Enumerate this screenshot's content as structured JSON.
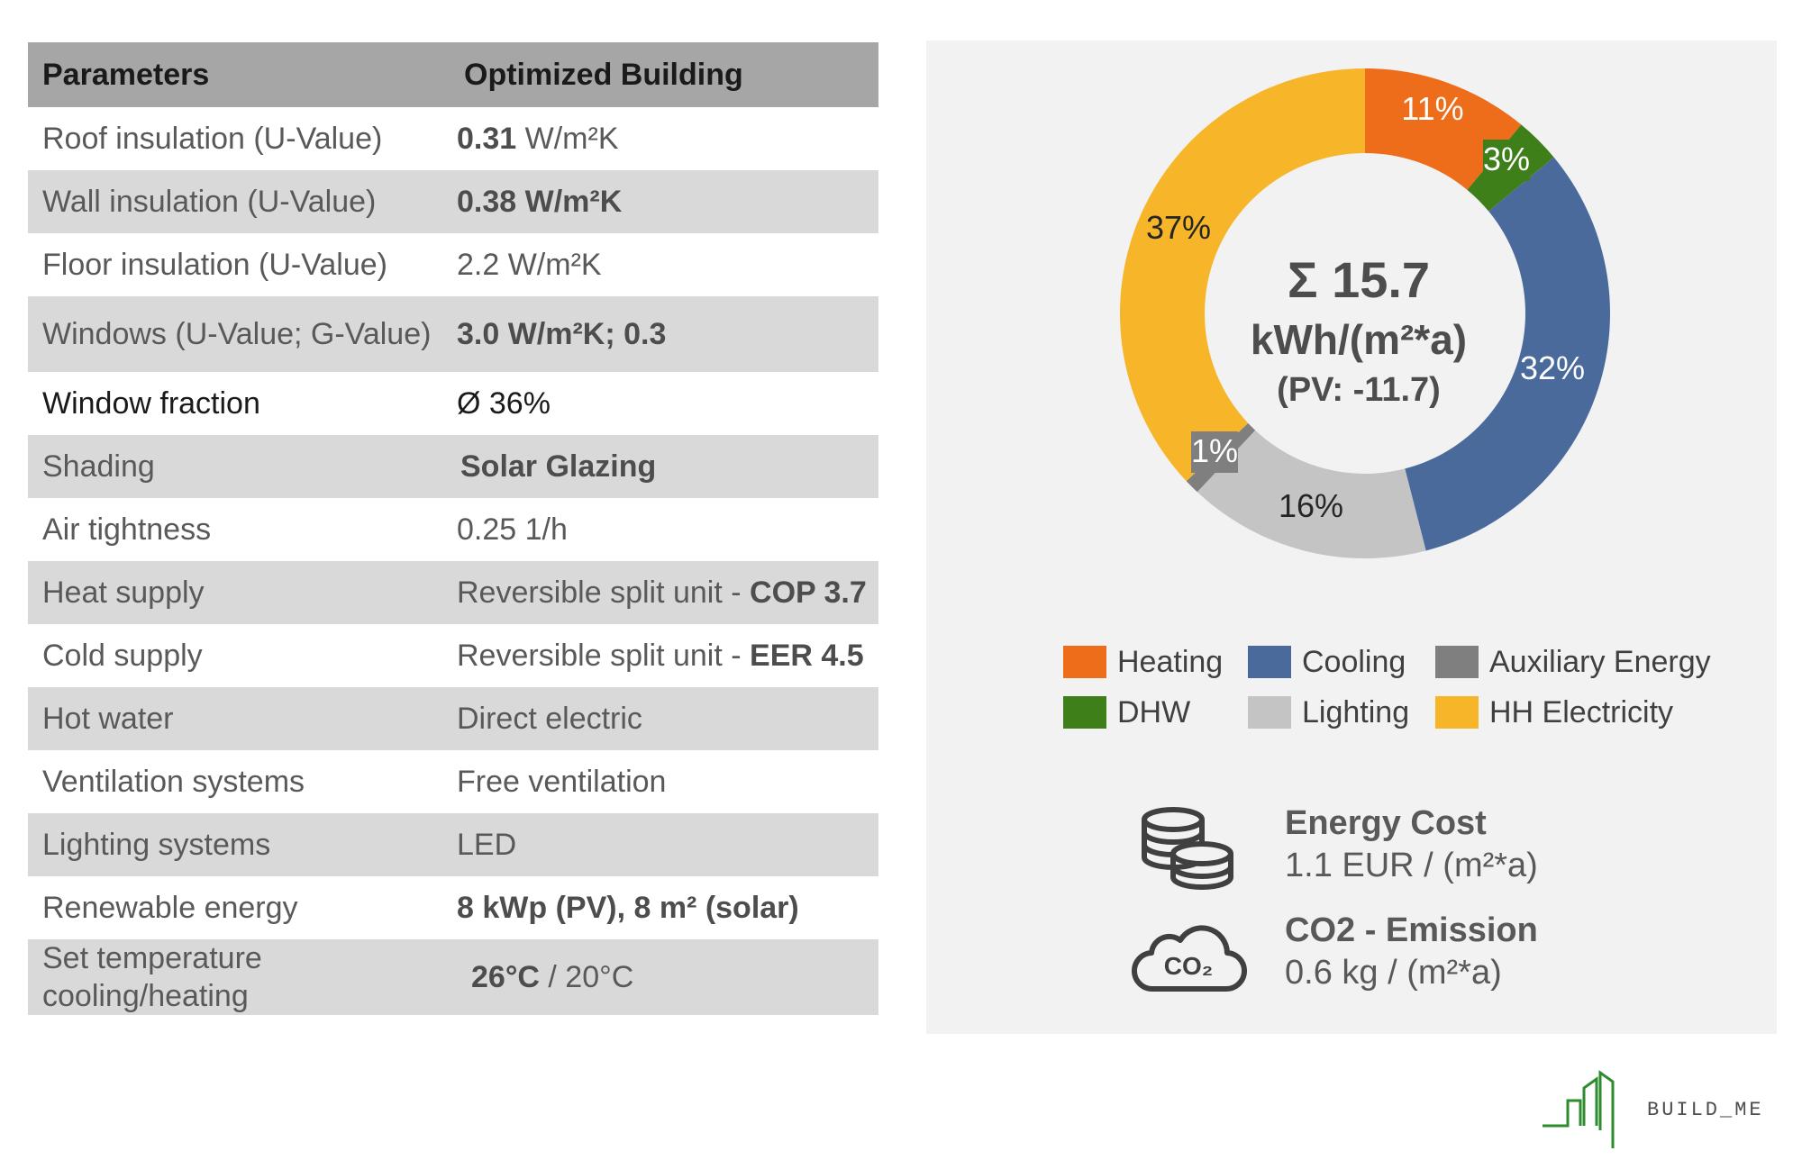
{
  "table": {
    "header": {
      "col1": "Parameters",
      "col2": "Optimized Building"
    },
    "rows": [
      {
        "param": "Roof insulation (U-Value)",
        "value_bold": "0.31",
        "value_rest": " W/m²K"
      },
      {
        "param": "Wall insulation (U-Value)",
        "value_bold": "0.38 W/m²K",
        "value_rest": ""
      },
      {
        "param": "Floor insulation (U-Value)",
        "value_bold": "",
        "value_rest": "2.2 W/m²K"
      },
      {
        "param": "Windows (U-Value; G-Value)",
        "value_bold": "3.0 W/m²K; 0.3",
        "value_rest": ""
      },
      {
        "param": "Window fraction",
        "value_bold": "",
        "value_rest": " Ø 36%"
      },
      {
        "param": "Shading",
        "value_bold": "Solar Glazing",
        "value_rest": ""
      },
      {
        "param": "Air tightness",
        "value_bold": "",
        "value_rest": "0.25 1/h"
      },
      {
        "param": "Heat supply",
        "value_rest": "Reversible split unit - ",
        "value_bold": "COP 3.7"
      },
      {
        "param": "Cold supply",
        "value_rest": "Reversible split unit - ",
        "value_bold": "EER 4.5"
      },
      {
        "param": "Hot water",
        "value_bold": "",
        "value_rest": "Direct electric"
      },
      {
        "param": "Ventilation systems",
        "value_bold": "",
        "value_rest": "Free ventilation"
      },
      {
        "param": "Lighting systems",
        "value_bold": "",
        "value_rest": "LED"
      },
      {
        "param": "Renewable energy",
        "value_bold": "8 kWp (PV), 8 m² (solar)",
        "value_rest": ""
      },
      {
        "param": "Set temperature cooling/heating",
        "value_bold": "26°C",
        "value_rest": " / 20°C"
      }
    ]
  },
  "chart_data": {
    "type": "pie",
    "donut": true,
    "center_total": "Σ 15.7",
    "center_unit": "kWh/(m²*a)",
    "center_pv": "(PV: -11.7)",
    "series": [
      {
        "name": "Heating",
        "value": 11,
        "label": "11%",
        "color": "#ed6d1a"
      },
      {
        "name": "DHW",
        "value": 3,
        "label": "3%",
        "color": "#3f7f1a"
      },
      {
        "name": "Cooling",
        "value": 32,
        "label": "32%",
        "color": "#4a6a9c"
      },
      {
        "name": "Lighting",
        "value": 16,
        "label": "16%",
        "color": "#c4c4c4"
      },
      {
        "name": "Auxiliary Energy",
        "value": 1,
        "label": "1%",
        "color": "#7f7f7f"
      },
      {
        "name": "HH Electricity",
        "value": 37,
        "label": "37%",
        "color": "#f7b52a"
      }
    ],
    "legend_order": [
      "Heating",
      "Cooling",
      "Auxiliary Energy",
      "DHW",
      "Lighting",
      "HH Electricity"
    ]
  },
  "metrics": {
    "energy_cost": {
      "title": "Energy Cost",
      "value": "1.1 EUR / (m²*a)",
      "icon": "coins-icon"
    },
    "co2": {
      "title": "CO2 - Emission",
      "value": "0.6 kg / (m²*a)",
      "icon": "co2-cloud-icon",
      "icon_text": "CO₂"
    }
  },
  "logo": {
    "text": "BUILD_ME",
    "color": "#2e8b2e"
  }
}
